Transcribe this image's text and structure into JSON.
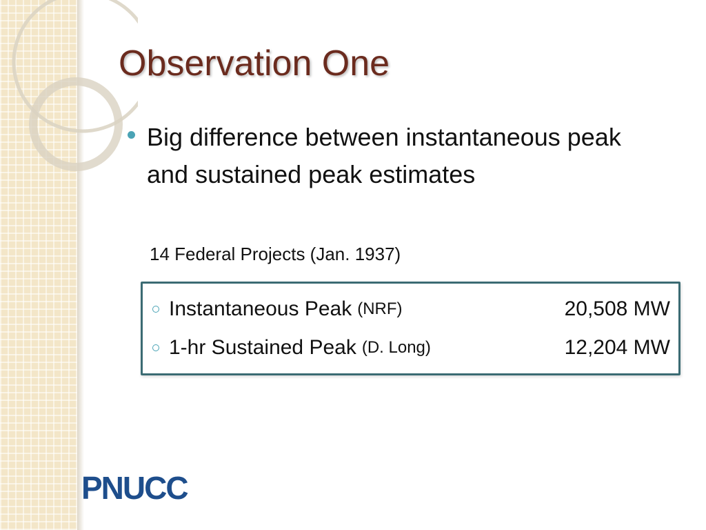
{
  "slide": {
    "title": "Observation One",
    "bullet": "Big difference between instantaneous peak and sustained peak estimates",
    "subheading": "14 Federal Projects (Jan. 1937)",
    "rows": [
      {
        "label": "Instantaneous Peak",
        "note": "(NRF)",
        "value": "20,508 MW"
      },
      {
        "label": "1-hr Sustained Peak",
        "note": "(D. Long)",
        "value": "12,204 MW"
      }
    ]
  },
  "logo": {
    "text": "PNUCC",
    "color": "#1e4e8c"
  },
  "theme": {
    "title_color": "#6b2b1e",
    "accent": "#4aa3b5",
    "box_border": "#3b6b73"
  }
}
